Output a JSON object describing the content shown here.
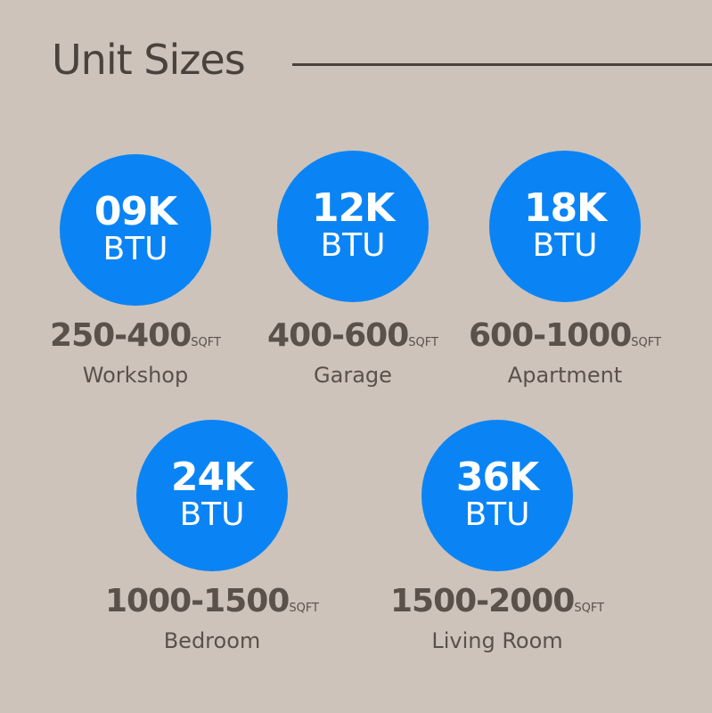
{
  "title": "Unit Sizes",
  "colors": {
    "background": "#cdc3bb",
    "circle": "#0a84f5",
    "text": "#5a514b"
  },
  "units": [
    {
      "btu_value": "09K",
      "btu_unit": "BTU",
      "range": "250-400",
      "range_unit": "SQFT",
      "room": "Workshop"
    },
    {
      "btu_value": "12K",
      "btu_unit": "BTU",
      "range": "400-600",
      "range_unit": "SQFT",
      "room": "Garage"
    },
    {
      "btu_value": "18K",
      "btu_unit": "BTU",
      "range": "600-1000",
      "range_unit": "SQFT",
      "room": "Apartment"
    },
    {
      "btu_value": "24K",
      "btu_unit": "BTU",
      "range": "1000-1500",
      "range_unit": "SQFT",
      "room": "Bedroom"
    },
    {
      "btu_value": "36K",
      "btu_unit": "BTU",
      "range": "1500-2000",
      "range_unit": "SQFT",
      "room": "Living Room"
    }
  ]
}
